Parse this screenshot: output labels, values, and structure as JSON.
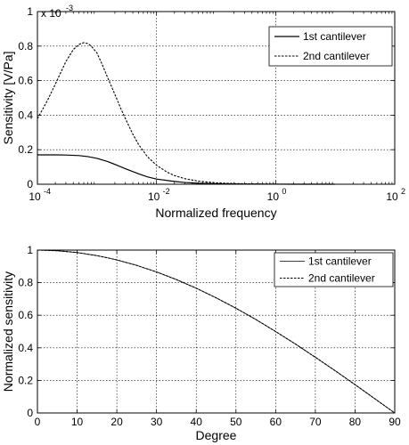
{
  "chart_data": [
    {
      "type": "line",
      "xscale": "log",
      "xlabel": "Normalized frequency",
      "ylabel": "Sensitivity [V/Pa]",
      "xlim": [
        0.0001,
        100
      ],
      "ylim": [
        0,
        0.001
      ],
      "y_multiplier": "x 10",
      "y_multiplier_exponent": "-3",
      "grid": true,
      "legend_position": "top-right",
      "x_tick_labels": [
        {
          "value": 0.0001,
          "base": "10",
          "exp": "-4"
        },
        {
          "value": 0.01,
          "base": "10",
          "exp": "-2"
        },
        {
          "value": 1,
          "base": "10",
          "exp": "0"
        },
        {
          "value": 100,
          "base": "10",
          "exp": "2"
        }
      ],
      "y_ticks": [
        0,
        0.0002,
        0.0004,
        0.0006,
        0.0008,
        0.001
      ],
      "y_tick_labels": [
        "0",
        "0.2",
        "0.4",
        "0.6",
        "0.8",
        "1"
      ],
      "series": [
        {
          "name": "1st cantilever",
          "style": "solid",
          "x": [
            0.0001,
            0.0002,
            0.0003,
            0.0005,
            0.0007,
            0.001,
            0.0015,
            0.002,
            0.003,
            0.005,
            0.007,
            0.01,
            0.02,
            0.03,
            0.05,
            0.1,
            0.2,
            0.5,
            1,
            2,
            5,
            10
          ],
          "y": [
            0.00017,
            0.00017,
            0.000169,
            0.000166,
            0.00016,
            0.00015,
            0.000132,
            0.000115,
            9e-05,
            6e-05,
            4.3e-05,
            3e-05,
            1.6e-05,
            1e-05,
            6e-06,
            3e-06,
            1.5e-06,
            6e-07,
            3e-07,
            1.5e-07,
            5e-08,
            2e-08
          ]
        },
        {
          "name": "2nd cantilever",
          "style": "dashed",
          "x": [
            0.0001,
            0.00015,
            0.0002,
            0.0003,
            0.0004,
            0.0005,
            0.0006,
            0.0007,
            0.0008,
            0.001,
            0.0012,
            0.0015,
            0.002,
            0.0025,
            0.003,
            0.004,
            0.005,
            0.007,
            0.01,
            0.015,
            0.02,
            0.03,
            0.05,
            0.1,
            0.2,
            0.5,
            1,
            2,
            5,
            10
          ],
          "y": [
            0.00038,
            0.00049,
            0.00058,
            0.00071,
            0.00078,
            0.00081,
            0.00082,
            0.000815,
            0.0008,
            0.00076,
            0.0007,
            0.00062,
            0.00052,
            0.00044,
            0.00038,
            0.00029,
            0.00023,
            0.00016,
            0.00011,
            7e-05,
            5e-05,
            3.2e-05,
            1.8e-05,
            8e-06,
            4e-06,
            1.5e-06,
            7e-07,
            3e-07,
            1e-07,
            5e-08
          ]
        }
      ]
    },
    {
      "type": "line",
      "xlabel": "Degree",
      "ylabel": "Normalized sensitivity",
      "xlim": [
        0,
        90
      ],
      "ylim": [
        0,
        1
      ],
      "grid": true,
      "legend_position": "top-right",
      "x_ticks": [
        0,
        10,
        20,
        30,
        40,
        50,
        60,
        70,
        80,
        90
      ],
      "x_tick_labels": [
        "0",
        "10",
        "20",
        "30",
        "40",
        "50",
        "60",
        "70",
        "80",
        "90"
      ],
      "y_ticks": [
        0,
        0.2,
        0.4,
        0.6,
        0.8,
        1
      ],
      "y_tick_labels": [
        "0",
        "0.2",
        "0.4",
        "0.6",
        "0.8",
        "1"
      ],
      "series": [
        {
          "name": "1st cantilever",
          "style": "solid",
          "x": [
            0,
            5,
            10,
            15,
            20,
            25,
            30,
            35,
            40,
            45,
            50,
            55,
            60,
            65,
            70,
            75,
            80,
            85,
            90
          ],
          "y": [
            1.0,
            0.996,
            0.985,
            0.966,
            0.94,
            0.906,
            0.866,
            0.819,
            0.766,
            0.707,
            0.643,
            0.574,
            0.5,
            0.423,
            0.342,
            0.259,
            0.174,
            0.087,
            0.0
          ]
        },
        {
          "name": "2nd cantilever",
          "style": "dashed",
          "x": [
            0,
            5,
            10,
            15,
            20,
            25,
            30,
            35,
            40,
            45,
            50,
            55,
            60,
            65,
            70,
            75,
            80,
            85,
            90
          ],
          "y": [
            1.0,
            0.996,
            0.985,
            0.966,
            0.94,
            0.906,
            0.866,
            0.819,
            0.766,
            0.707,
            0.643,
            0.574,
            0.5,
            0.423,
            0.342,
            0.259,
            0.174,
            0.087,
            0.0
          ]
        }
      ]
    }
  ]
}
